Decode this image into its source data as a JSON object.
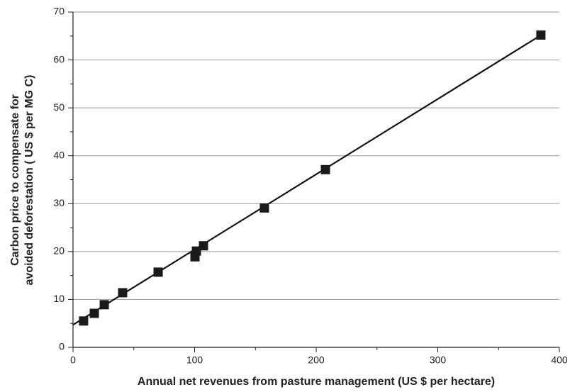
{
  "chart_data": {
    "type": "scatter",
    "x_label": "Annual net revenues from pasture management (US $ per hectare)",
    "y_label": [
      "Carbon price to compensate for",
      "avoided deforestation ( US $ per MG C)"
    ],
    "x": [
      8.7,
      17.5,
      25.7,
      40.8,
      70,
      100.3,
      101.5,
      107.3,
      157.4,
      207.6,
      384.8
    ],
    "values": [
      5.5,
      7.1,
      8.9,
      11.4,
      15.7,
      18.9,
      20.1,
      21.2,
      29.1,
      37.1,
      65.2
    ],
    "color": "#1a1a1a",
    "trend_line": {
      "x": [
        0,
        385
      ],
      "y": [
        4.7,
        65.2
      ]
    },
    "xlim": [
      0,
      400
    ],
    "xticks": [
      0,
      100,
      200,
      300,
      400
    ],
    "xminorticks": [
      50,
      150,
      250,
      350
    ],
    "ylim": [
      0,
      70
    ],
    "yticks": [
      0,
      10,
      20,
      30,
      40,
      50,
      60,
      70
    ],
    "yminorticks": [
      5,
      15,
      25,
      35,
      45,
      55,
      65
    ],
    "grid": true
  }
}
